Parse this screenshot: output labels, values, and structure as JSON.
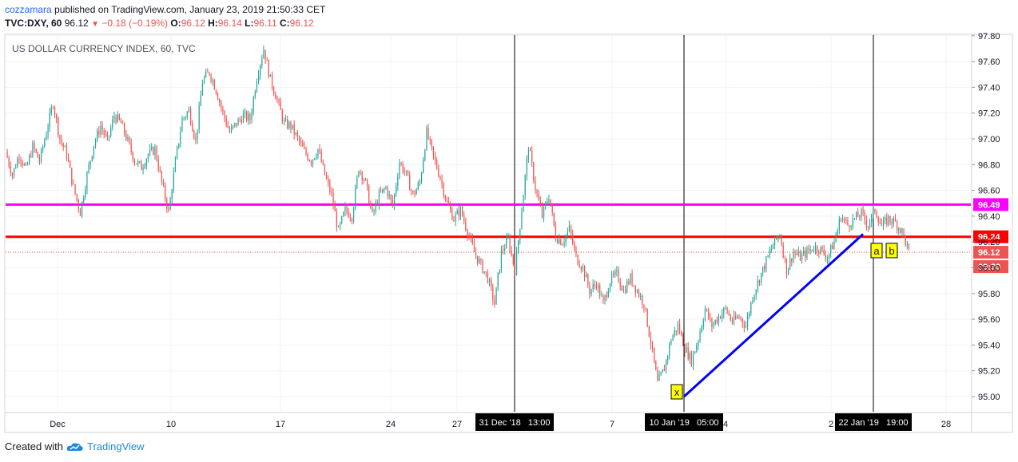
{
  "header": {
    "author": "cozzamara",
    "published_text": "published on TradingView.com, January 23, 2019 21:50:33 CET",
    "symbol": "TVC:DXY, 60",
    "price": "96.12",
    "down_arrow_icon": "triangle-down",
    "change": "−0.18 (−0.19%)",
    "ohlc": [
      {
        "label": "O:",
        "value": "96.12"
      },
      {
        "label": "H:",
        "value": "96.14"
      },
      {
        "label": "L:",
        "value": "96.11"
      },
      {
        "label": "C:",
        "value": "96.12"
      }
    ]
  },
  "footer": {
    "created_with": "Created with",
    "logo_icon": "tradingview-cloud-logo",
    "brand": "TradingView"
  },
  "chart_data": {
    "type": "candlestick",
    "title": "US DOLLAR CURRENCY INDEX, 60, TVC",
    "y_ticks": [
      "97.80",
      "97.60",
      "97.40",
      "97.20",
      "97.00",
      "96.80",
      "96.60",
      "96.40",
      "96.20",
      "96.00",
      "95.80",
      "95.60",
      "95.40",
      "95.20",
      "95.00"
    ],
    "ylim": [
      94.95,
      97.9
    ],
    "x_ticks": [
      "Dec",
      "10",
      "17",
      "24",
      "27",
      "7",
      "4",
      "2",
      "28"
    ],
    "x_highlights": [
      "31 Dec '18   13:00",
      "10 Jan '19   05:00",
      "22 Jan '19   19:00"
    ],
    "grid": true,
    "colors": {
      "up": "#26a69a",
      "down": "#ef5350",
      "magenta": "#ff00ff",
      "red_line": "#ff0000",
      "blue_line": "#0000ff",
      "marker_bg": "#ffff00"
    },
    "horizontal_lines": [
      {
        "value": 96.49,
        "label": "96.49",
        "color": "#ff00ff"
      },
      {
        "value": 96.24,
        "label": "96.24",
        "color": "#ff0000"
      }
    ],
    "current_price": {
      "value": 96.12,
      "label": "96.12",
      "countdown": "09:30"
    },
    "trendline": {
      "from": {
        "date": "10 Jan '19 05:00",
        "value": 95.0
      },
      "to": {
        "value": 96.26
      }
    },
    "markers": [
      "x",
      "a",
      "b"
    ],
    "price_path": [
      [
        0,
        96.9
      ],
      [
        2,
        96.72
      ],
      [
        4,
        96.88
      ],
      [
        6,
        96.76
      ],
      [
        8,
        96.94
      ],
      [
        10,
        96.83
      ],
      [
        12,
        97.05
      ],
      [
        14,
        97.28
      ],
      [
        16,
        97.0
      ],
      [
        18,
        96.88
      ],
      [
        20,
        96.62
      ],
      [
        22,
        96.43
      ],
      [
        24,
        96.72
      ],
      [
        26,
        96.96
      ],
      [
        28,
        97.1
      ],
      [
        30,
        96.98
      ],
      [
        32,
        97.18
      ],
      [
        34,
        97.12
      ],
      [
        36,
        96.98
      ],
      [
        38,
        96.83
      ],
      [
        40,
        96.78
      ],
      [
        42,
        96.88
      ],
      [
        44,
        96.92
      ],
      [
        46,
        96.66
      ],
      [
        48,
        96.43
      ],
      [
        50,
        96.82
      ],
      [
        52,
        97.15
      ],
      [
        54,
        97.22
      ],
      [
        56,
        96.98
      ],
      [
        58,
        97.45
      ],
      [
        60,
        97.52
      ],
      [
        62,
        97.38
      ],
      [
        64,
        97.2
      ],
      [
        66,
        97.05
      ],
      [
        68,
        97.12
      ],
      [
        70,
        97.18
      ],
      [
        72,
        97.15
      ],
      [
        74,
        97.48
      ],
      [
        76,
        97.7
      ],
      [
        78,
        97.46
      ],
      [
        80,
        97.3
      ],
      [
        82,
        97.12
      ],
      [
        84,
        97.1
      ],
      [
        86,
        97.0
      ],
      [
        88,
        96.9
      ],
      [
        90,
        96.83
      ],
      [
        92,
        96.92
      ],
      [
        94,
        96.72
      ],
      [
        96,
        96.56
      ],
      [
        98,
        96.28
      ],
      [
        100,
        96.45
      ],
      [
        102,
        96.4
      ],
      [
        104,
        96.78
      ],
      [
        106,
        96.66
      ],
      [
        108,
        96.4
      ],
      [
        110,
        96.56
      ],
      [
        112,
        96.62
      ],
      [
        114,
        96.48
      ],
      [
        116,
        96.82
      ],
      [
        118,
        96.72
      ],
      [
        120,
        96.56
      ],
      [
        122,
        96.66
      ],
      [
        124,
        97.05
      ],
      [
        126,
        96.86
      ],
      [
        128,
        96.7
      ],
      [
        130,
        96.5
      ],
      [
        132,
        96.38
      ],
      [
        134,
        96.45
      ],
      [
        136,
        96.28
      ],
      [
        138,
        96.12
      ],
      [
        140,
        96.02
      ],
      [
        142,
        95.92
      ],
      [
        144,
        95.72
      ],
      [
        146,
        96.12
      ],
      [
        148,
        96.22
      ],
      [
        150,
        95.98
      ],
      [
        152,
        96.45
      ],
      [
        154,
        96.95
      ],
      [
        156,
        96.62
      ],
      [
        158,
        96.4
      ],
      [
        160,
        96.56
      ],
      [
        162,
        96.24
      ],
      [
        164,
        96.2
      ],
      [
        166,
        96.3
      ],
      [
        168,
        96.08
      ],
      [
        170,
        96.0
      ],
      [
        172,
        95.82
      ],
      [
        174,
        95.88
      ],
      [
        176,
        95.72
      ],
      [
        178,
        95.9
      ],
      [
        180,
        95.95
      ],
      [
        182,
        95.82
      ],
      [
        184,
        95.92
      ],
      [
        186,
        95.82
      ],
      [
        188,
        95.72
      ],
      [
        190,
        95.42
      ],
      [
        192,
        95.1
      ],
      [
        194,
        95.22
      ],
      [
        196,
        95.45
      ],
      [
        198,
        95.55
      ],
      [
        200,
        95.38
      ],
      [
        202,
        95.28
      ],
      [
        204,
        95.45
      ],
      [
        206,
        95.68
      ],
      [
        208,
        95.55
      ],
      [
        210,
        95.62
      ],
      [
        212,
        95.68
      ],
      [
        214,
        95.58
      ],
      [
        216,
        95.62
      ],
      [
        218,
        95.55
      ],
      [
        220,
        95.78
      ],
      [
        222,
        95.92
      ],
      [
        224,
        96.05
      ],
      [
        226,
        96.18
      ],
      [
        228,
        96.26
      ],
      [
        230,
        95.98
      ],
      [
        232,
        96.12
      ],
      [
        234,
        96.08
      ],
      [
        236,
        96.12
      ],
      [
        238,
        96.16
      ],
      [
        240,
        96.14
      ],
      [
        242,
        96.08
      ],
      [
        244,
        96.2
      ],
      [
        246,
        96.4
      ],
      [
        248,
        96.33
      ],
      [
        250,
        96.38
      ],
      [
        252,
        96.42
      ],
      [
        254,
        96.33
      ],
      [
        256,
        96.45
      ],
      [
        258,
        96.32
      ],
      [
        260,
        96.38
      ],
      [
        262,
        96.35
      ],
      [
        264,
        96.28
      ],
      [
        266,
        96.12
      ]
    ]
  }
}
